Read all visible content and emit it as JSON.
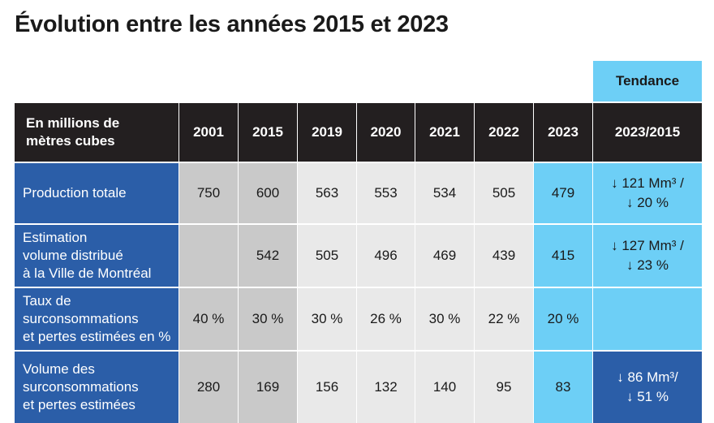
{
  "title": "Évolution entre les années 2015 et 2023",
  "trend_header": "Tendance",
  "header": {
    "label": "En millions de\nmètres cubes",
    "years": [
      "2001",
      "2015",
      "2019",
      "2020",
      "2021",
      "2022",
      "2023"
    ],
    "trend": "2023/2015"
  },
  "rows": [
    {
      "label": "Production totale",
      "values": [
        "750",
        "600",
        "563",
        "553",
        "534",
        "505",
        "479"
      ],
      "trend": "↓ 121 Mm³ /\n↓ 20 %"
    },
    {
      "label": "Estimation\nvolume distribué\nà la Ville de Montréal",
      "values": [
        "",
        "542",
        "505",
        "496",
        "469",
        "439",
        "415"
      ],
      "trend": "↓ 127 Mm³ /\n↓ 23 %"
    },
    {
      "label": "Taux de\nsurconsommations\net pertes estimées en %",
      "values": [
        "40 %",
        "30 %",
        "30 %",
        "26 %",
        "30 %",
        "22 %",
        "20 %"
      ],
      "trend": ""
    },
    {
      "label": "Volume des\nsurconsommations\net pertes estimées",
      "values": [
        "280",
        "169",
        "156",
        "132",
        "140",
        "95",
        "83"
      ],
      "trend": "↓ 86 Mm³/\n↓ 51 %"
    }
  ],
  "colors": {
    "header_bg": "#231f20",
    "row_label_bg": "#2b5ea8",
    "cyan": "#6dcff6",
    "gray_dark": "#c9c9c9",
    "gray_light": "#e9e9e9"
  }
}
